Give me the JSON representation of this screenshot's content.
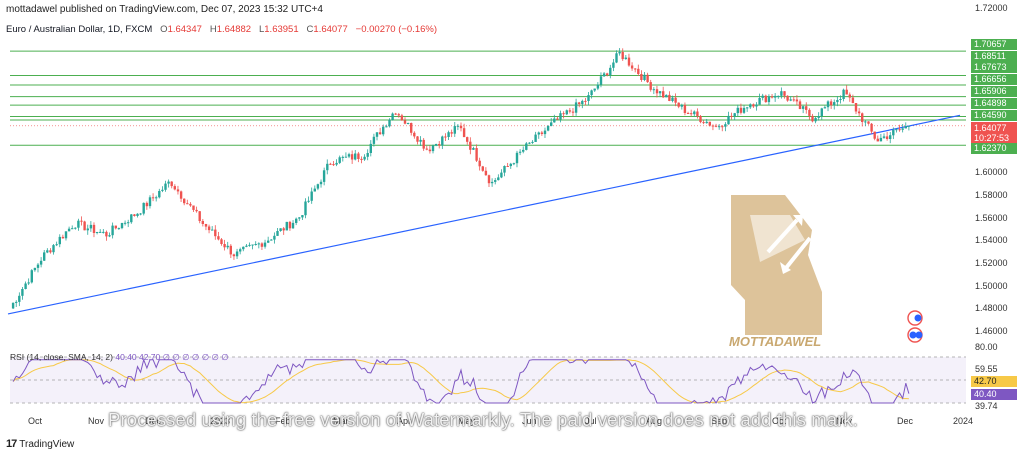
{
  "header": {
    "published": "mottadawel published on TradingView.com, Dec 07, 2023 15:32 UTC+4"
  },
  "symbol": {
    "name": "Euro / Australian Dollar, 1D, FXCM",
    "o_label": "O",
    "o": "1.64347",
    "h_label": "H",
    "h": "1.64882",
    "l_label": "L",
    "l": "1.63951",
    "c_label": "C",
    "c": "1.64077",
    "change": "−0.00270 (−0.16%)"
  },
  "price_axis": {
    "ticks": [
      "1.72000",
      "1.60000",
      "1.58000",
      "1.56000",
      "1.54000",
      "1.52000",
      "1.50000",
      "1.48000",
      "1.46000"
    ],
    "level_tags": [
      "1.70657",
      "1.68511",
      "1.67673",
      "1.66656",
      "1.65906",
      "1.64898",
      "1.64590",
      "1.62370"
    ],
    "current_price": "1.64077",
    "countdown": "10:27:53"
  },
  "rsi": {
    "label": "RSI (14, close, SMA, 14, 2)",
    "values_text": "40.40  42.70  ∅  ∅  ∅  ∅  ∅  ∅  ∅",
    "ticks": [
      "80.00",
      "59.55",
      "39.74"
    ],
    "tag_sma": "42.70",
    "tag_rsi": "40.40"
  },
  "time_axis": [
    "Oct",
    "Nov",
    "Dec",
    "2023",
    "Feb",
    "Mar",
    "Apr",
    "May",
    "Jun",
    "Jul",
    "Aug",
    "Sep",
    "Oct",
    "Nov",
    "Dec",
    "2024"
  ],
  "watermark": {
    "brand": "MOTTADAWEL",
    "notice": "Processed using the free version of Watermarkly. The paid version does not add this mark."
  },
  "footer": {
    "brand": "TradingView"
  },
  "colors": {
    "up": "#26a69a",
    "down": "#ef5350",
    "trendline": "#2962ff",
    "level": "#4caf50",
    "rsi": "#7e57c2",
    "rsi_sma": "#f7c948",
    "watermark": "#d9bd8f"
  },
  "chart_data": {
    "type": "candlestick",
    "title": "Euro / Australian Dollar, 1D, FXCM",
    "y_range": [
      1.46,
      1.72
    ],
    "horizontal_levels": [
      1.70657,
      1.68511,
      1.67673,
      1.66656,
      1.65906,
      1.64898,
      1.6459,
      1.6237
    ],
    "trendline": {
      "from": {
        "x": "Oct 2022",
        "y": 1.475
      },
      "to": {
        "x": "Dec 2023",
        "y": 1.65
      }
    },
    "price_path": [
      {
        "x": "Sep 2022",
        "y": 1.48
      },
      {
        "x": "Oct 2022",
        "y": 1.525
      },
      {
        "x": "Oct 2022",
        "y": 1.555
      },
      {
        "x": "Nov 2022",
        "y": 1.545
      },
      {
        "x": "Dec 2022",
        "y": 1.565
      },
      {
        "x": "Dec 2022",
        "y": 1.592
      },
      {
        "x": "2023",
        "y": 1.555
      },
      {
        "x": "Feb 2023",
        "y": 1.527
      },
      {
        "x": "Feb 2023",
        "y": 1.54
      },
      {
        "x": "Mar 2023",
        "y": 1.56
      },
      {
        "x": "Mar 2023",
        "y": 1.61
      },
      {
        "x": "Apr 2023",
        "y": 1.615
      },
      {
        "x": "Apr 2023",
        "y": 1.655
      },
      {
        "x": "May 2023",
        "y": 1.62
      },
      {
        "x": "May 2023",
        "y": 1.64
      },
      {
        "x": "Jun 2023",
        "y": 1.59
      },
      {
        "x": "Jun 2023",
        "y": 1.62
      },
      {
        "x": "Jul 2023",
        "y": 1.645
      },
      {
        "x": "Jul 2023",
        "y": 1.665
      },
      {
        "x": "Aug 2023",
        "y": 1.705
      },
      {
        "x": "Aug 2023",
        "y": 1.675
      },
      {
        "x": "Sep 2023",
        "y": 1.655
      },
      {
        "x": "Sep 2023",
        "y": 1.64
      },
      {
        "x": "Oct 2023",
        "y": 1.66
      },
      {
        "x": "Oct 2023",
        "y": 1.67
      },
      {
        "x": "Nov 2023",
        "y": 1.648
      },
      {
        "x": "Nov 2023",
        "y": 1.67
      },
      {
        "x": "Dec 2023",
        "y": 1.628
      },
      {
        "x": "Dec 2023",
        "y": 1.6408
      }
    ],
    "rsi_range": [
      39.74,
      80
    ]
  }
}
